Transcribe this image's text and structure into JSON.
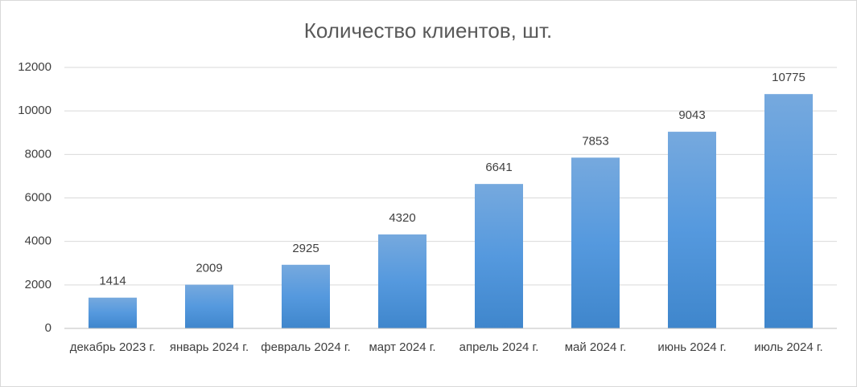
{
  "chart_data": {
    "type": "bar",
    "title": "Количество клиентов, шт.",
    "categories": [
      "декабрь 2023 г.",
      "январь 2024 г.",
      "февраль 2024 г.",
      "март 2024 г.",
      "апрель 2024 г.",
      "май 2024 г.",
      "июнь 2024 г.",
      "июль 2024 г."
    ],
    "values": [
      1414,
      2009,
      2925,
      4320,
      6641,
      7853,
      9043,
      10775
    ],
    "color": "#4a8fd6",
    "ylim": [
      0,
      12000
    ],
    "yticks": [
      0,
      2000,
      4000,
      6000,
      8000,
      10000,
      12000
    ],
    "grid": true
  }
}
